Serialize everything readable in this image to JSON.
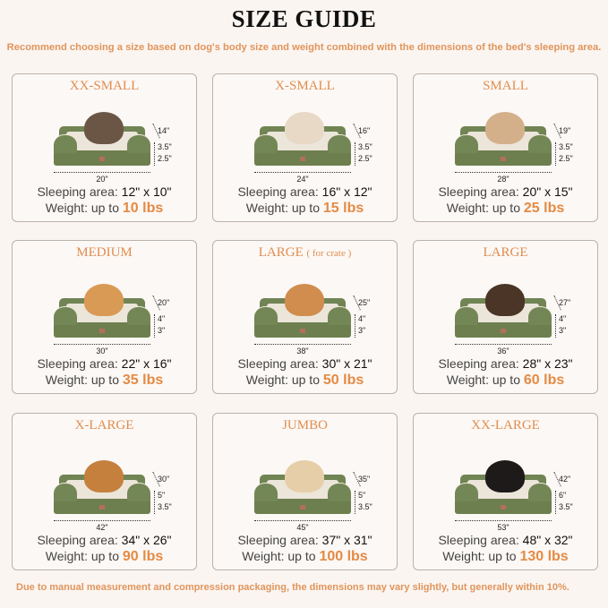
{
  "header": {
    "title": "SIZE GUIDE",
    "subtitle": "Recommend choosing a size based on dog's body size and weight combined with the dimensions of the bed's sleeping area."
  },
  "labels": {
    "sleeping_area": "Sleeping area:",
    "weight": "Weight:  up to"
  },
  "colors": {
    "accent": "#e48a44",
    "bed_green": "#6d7f4e",
    "card_border": "#b9b2ad",
    "background": "#fbf5f1"
  },
  "sizes": [
    {
      "name": "XX-SMALL",
      "note": "",
      "pet": "cat",
      "pet_color": "#6b5646",
      "height": "14\"",
      "top": "3.5\"",
      "base": "2.5\"",
      "width": "20\"",
      "sleeping_area": "12\" x 10\"",
      "weight": "10 lbs"
    },
    {
      "name": "X-SMALL",
      "note": "",
      "pet": "dog",
      "pet_color": "#e8d8c6",
      "height": "16\"",
      "top": "3.5\"",
      "base": "2.5\"",
      "width": "24\"",
      "sleeping_area": "16\" x 12\"",
      "weight": "15 lbs"
    },
    {
      "name": "SMALL",
      "note": "",
      "pet": "dog",
      "pet_color": "#d4b08a",
      "height": "19\"",
      "top": "3.5\"",
      "base": "2.5\"",
      "width": "28\"",
      "sleeping_area": "20\" x 15\"",
      "weight": "25 lbs"
    },
    {
      "name": "MEDIUM",
      "note": "",
      "pet": "dog",
      "pet_color": "#d99a55",
      "height": "20\"",
      "top": "4\"",
      "base": "3\"",
      "width": "30\"",
      "sleeping_area": "22\" x 16\"",
      "weight": "35 lbs"
    },
    {
      "name": "LARGE",
      "note": "( for crate )",
      "pet": "dog",
      "pet_color": "#d08d4e",
      "height": "25\"",
      "top": "4\"",
      "base": "3\"",
      "width": "38\"",
      "sleeping_area": "30\" x 21\"",
      "weight": "50 lbs"
    },
    {
      "name": "LARGE",
      "note": "",
      "pet": "dog",
      "pet_color": "#4a3526",
      "height": "27\"",
      "top": "4\"",
      "base": "3\"",
      "width": "36\"",
      "sleeping_area": "28\" x 23\"",
      "weight": "60 lbs"
    },
    {
      "name": "X-LARGE",
      "note": "",
      "pet": "dog",
      "pet_color": "#c5803e",
      "height": "30\"",
      "top": "5\"",
      "base": "3.5\"",
      "width": "42\"",
      "sleeping_area": "34\" x 26\"",
      "weight": "90 lbs"
    },
    {
      "name": "JUMBO",
      "note": "",
      "pet": "dog",
      "pet_color": "#e6cfa8",
      "height": "35\"",
      "top": "5\"",
      "base": "3.5\"",
      "width": "45\"",
      "sleeping_area": "37\" x 31\"",
      "weight": "100 lbs"
    },
    {
      "name": "XX-LARGE",
      "note": "",
      "pet": "dog",
      "pet_color": "#1e1a1a",
      "height": "42\"",
      "top": "6\"",
      "base": "3.5\"",
      "width": "53\"",
      "sleeping_area": "48\" x 32\"",
      "weight": "130 lbs"
    }
  ],
  "footer": "Due to manual measurement and compression packaging, the dimensions may vary slightly, but generally within 10%."
}
